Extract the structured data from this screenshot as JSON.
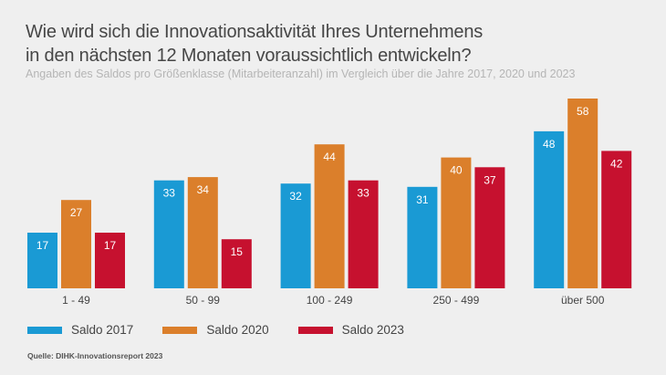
{
  "chart_data": {
    "type": "bar",
    "title": "Wie wird sich die Innovationsaktivität Ihres Unternehmens in den nächsten 12 Monaten voraussichtlich entwickeln?",
    "title_lines": [
      "Wie wird sich die Innovationsaktivität Ihres Unternehmens",
      "in den nächsten 12 Monaten voraussichtlich entwickeln?"
    ],
    "subtitle": "Angaben des Saldos pro Größenklasse (Mitarbeiteranzahl) im Vergleich über die Jahre 2017, 2020 und 2023",
    "xlabel": "",
    "ylabel": "",
    "ylim": [
      0,
      58
    ],
    "grid": false,
    "legend_position": "bottom-left",
    "categories": [
      "1 - 49",
      "50 - 99",
      "100 - 249",
      "250 - 499",
      "über 500"
    ],
    "series": [
      {
        "name": "Saldo 2017",
        "color": "#1a9ad4",
        "values": [
          17,
          33,
          32,
          31,
          48
        ]
      },
      {
        "name": "Saldo 2020",
        "color": "#db7f2b",
        "values": [
          27,
          34,
          44,
          40,
          58
        ]
      },
      {
        "name": "Saldo 2023",
        "color": "#c6112f",
        "values": [
          17,
          15,
          33,
          37,
          42
        ]
      }
    ],
    "source": "Quelle: DIHK-Innovationsreport 2023"
  }
}
